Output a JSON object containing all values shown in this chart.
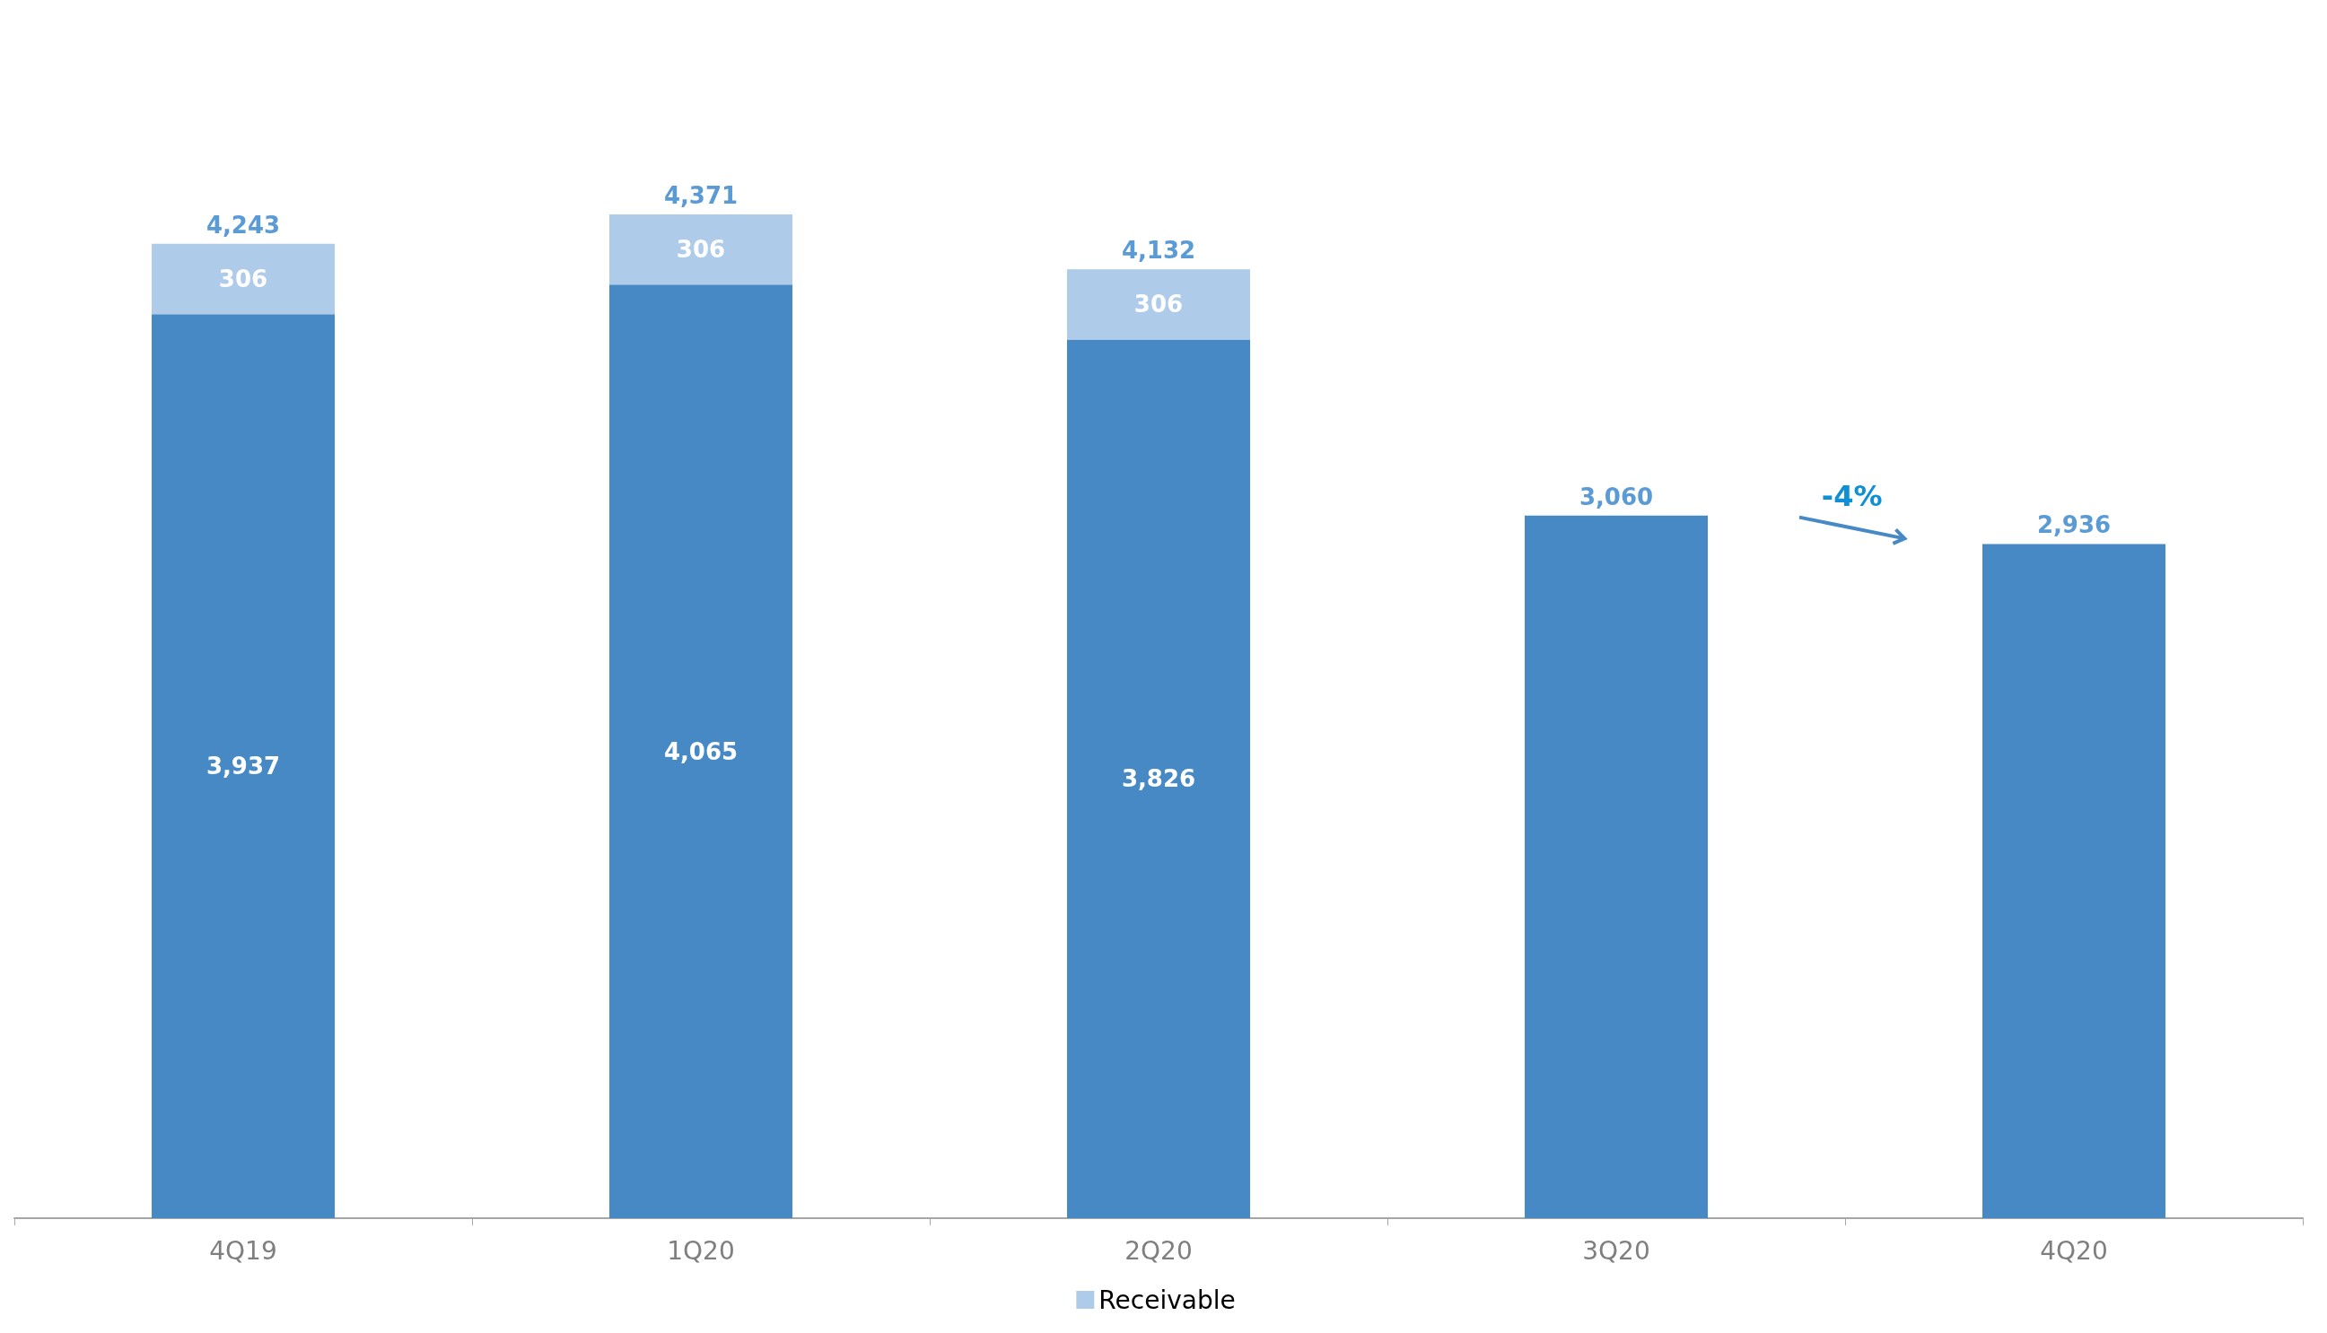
{
  "chart_data": {
    "type": "bar",
    "stacked": true,
    "categories": [
      "4Q19",
      "1Q20",
      "2Q20",
      "3Q20",
      "4Q20"
    ],
    "series": [
      {
        "color": "#4689c5",
        "values": [
          3937,
          4065,
          3826,
          3060,
          2936
        ],
        "value_labels": [
          "3,937",
          "4,065",
          "3,826",
          null,
          null
        ]
      },
      {
        "name": "Receivable",
        "color": "#aecbea",
        "values": [
          306,
          306,
          306,
          null,
          null
        ],
        "value_labels": [
          "306",
          "306",
          "306",
          null,
          null
        ]
      }
    ],
    "totals": [
      "4,243",
      "4,371",
      "4,132",
      "3,060",
      "2,936"
    ],
    "annotations": [
      "-4%"
    ],
    "legend": "bottom",
    "grid": false
  }
}
